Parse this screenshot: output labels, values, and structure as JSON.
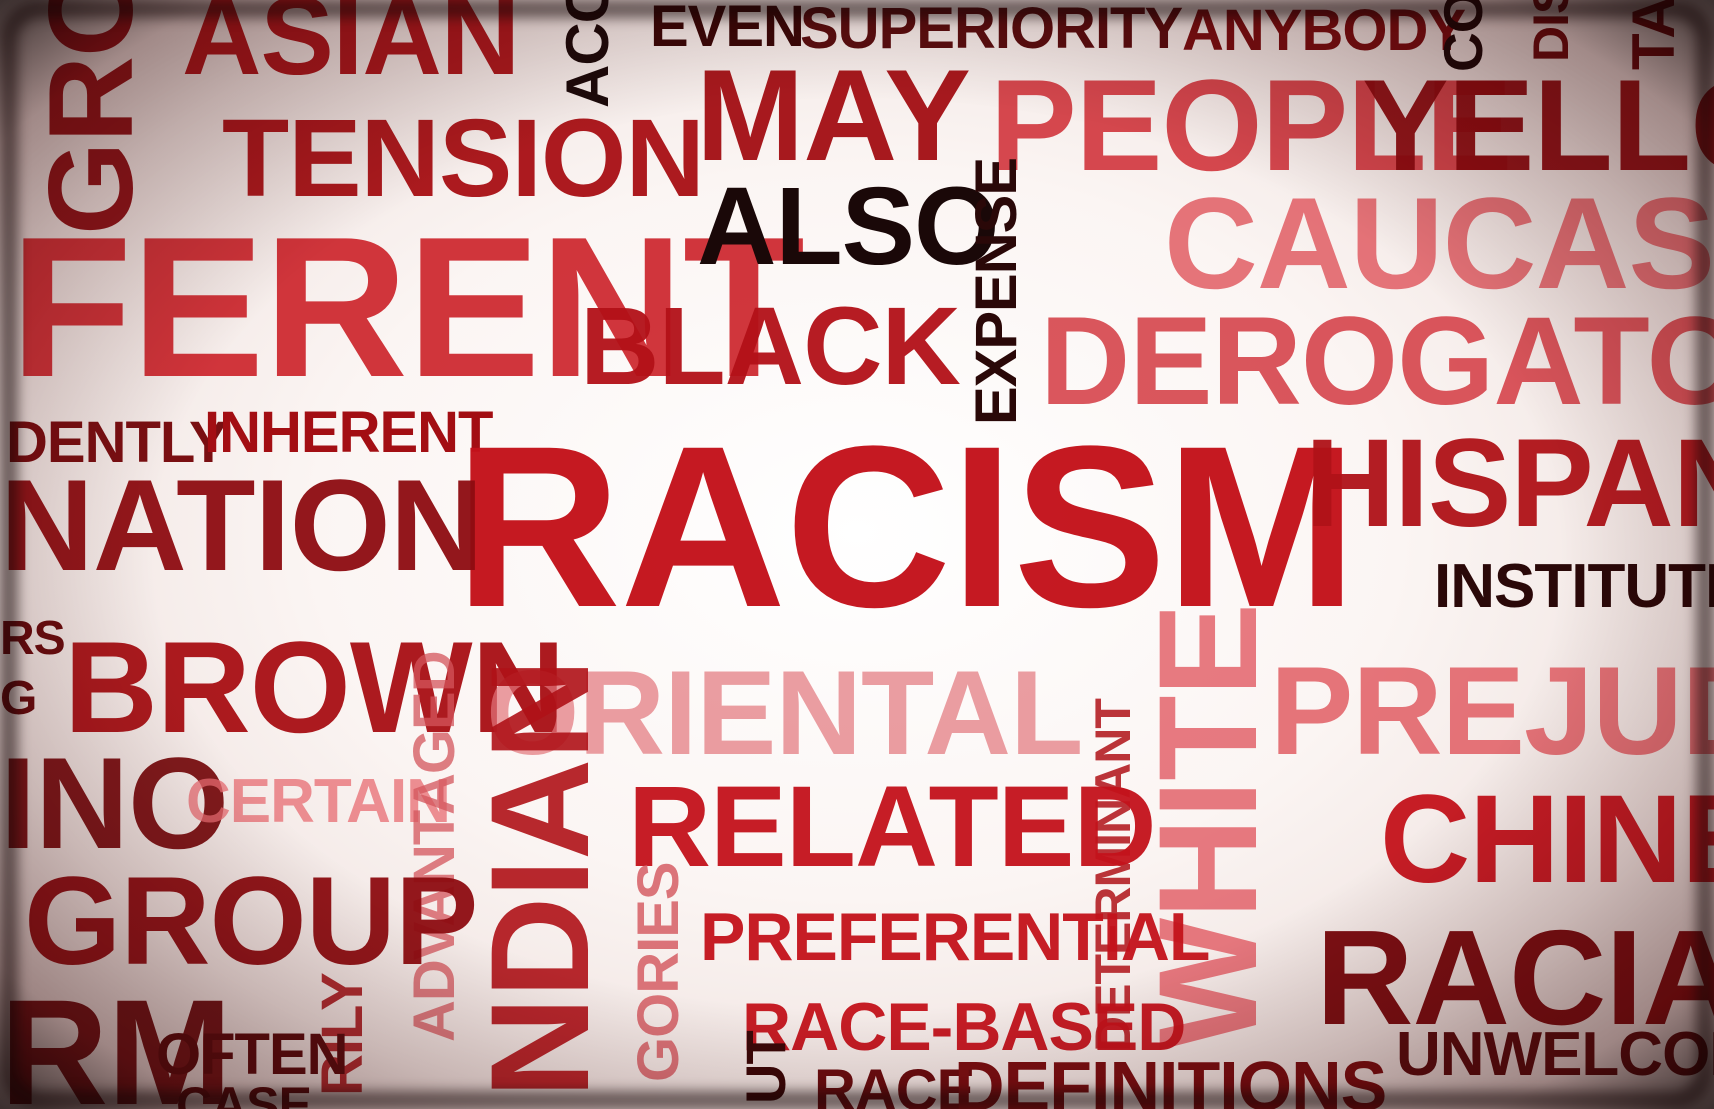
{
  "words": [
    {
      "id": "w-gro",
      "text": "GRO",
      "size": 120,
      "color": "#8c0d12",
      "opacity": 0.95,
      "vertical": true
    },
    {
      "id": "w-asian",
      "text": "ASIAN",
      "size": 110,
      "color": "#a80f14",
      "opacity": 0.95
    },
    {
      "id": "w-acc",
      "text": "ACC",
      "size": 60,
      "color": "#1c0a0a",
      "opacity": 1,
      "vertical": true
    },
    {
      "id": "w-even",
      "text": "EVEN",
      "size": 58,
      "color": "#3a0808",
      "opacity": 1
    },
    {
      "id": "w-superiority",
      "text": "SUPERIORITY",
      "size": 58,
      "color": "#5a0e10",
      "opacity": 1
    },
    {
      "id": "w-anybody",
      "text": "ANYBODY",
      "size": 58,
      "color": "#7a0f12",
      "opacity": 1
    },
    {
      "id": "w-co",
      "text": "CO",
      "size": 55,
      "color": "#1c0a0a",
      "opacity": 1,
      "vertical": true
    },
    {
      "id": "w-dis",
      "text": "DIS",
      "size": 50,
      "color": "#6a0d10",
      "opacity": 1,
      "vertical": true
    },
    {
      "id": "w-ta",
      "text": "TA",
      "size": 60,
      "color": "#6a0d10",
      "opacity": 1,
      "vertical": true
    },
    {
      "id": "w-tension",
      "text": "TENSION",
      "size": 110,
      "color": "#a80f14",
      "opacity": 0.95
    },
    {
      "id": "w-may",
      "text": "MAY",
      "size": 130,
      "color": "#a30e13",
      "opacity": 0.95
    },
    {
      "id": "w-people",
      "text": "PEOPLE",
      "size": 130,
      "color": "#cf2a32",
      "opacity": 0.85
    },
    {
      "id": "w-yellow",
      "text": "YELLO",
      "size": 130,
      "color": "#8e0c11",
      "opacity": 0.95
    },
    {
      "id": "w-ferent",
      "text": "FERENT",
      "size": 200,
      "color": "#cc2128",
      "opacity": 0.9
    },
    {
      "id": "w-also",
      "text": "ALSO",
      "size": 110,
      "color": "#1a0808",
      "opacity": 1
    },
    {
      "id": "w-expense",
      "text": "EXPENSE",
      "size": 58,
      "color": "#2a0808",
      "opacity": 1,
      "vertical": true
    },
    {
      "id": "w-caucasia",
      "text": "CAUCASIA",
      "size": 130,
      "color": "#e0545b",
      "opacity": 0.8
    },
    {
      "id": "w-black",
      "text": "BLACK",
      "size": 110,
      "color": "#b31118",
      "opacity": 0.95
    },
    {
      "id": "w-derogatory",
      "text": "DEROGATORY",
      "size": 125,
      "color": "#d43a42",
      "opacity": 0.85
    },
    {
      "id": "w-dently",
      "text": "DENTLY",
      "size": 58,
      "color": "#7a0f12",
      "opacity": 1
    },
    {
      "id": "w-inherent",
      "text": "INHERENT",
      "size": 58,
      "color": "#a30e13",
      "opacity": 1
    },
    {
      "id": "w-racism",
      "text": "RACISM",
      "size": 230,
      "color": "#c4121b",
      "opacity": 0.97
    },
    {
      "id": "w-hispan",
      "text": "HISPAN",
      "size": 125,
      "color": "#b01218",
      "opacity": 0.95
    },
    {
      "id": "w-nation",
      "text": "NATION",
      "size": 130,
      "color": "#8e0c11",
      "opacity": 0.95
    },
    {
      "id": "w-institutio",
      "text": "INSTITUTIO",
      "size": 62,
      "color": "#2a0808",
      "opacity": 1
    },
    {
      "id": "w-rs",
      "text": "RS",
      "size": 48,
      "color": "#6a0d10",
      "opacity": 1
    },
    {
      "id": "w-g",
      "text": "G",
      "size": 48,
      "color": "#6a0d10",
      "opacity": 1
    },
    {
      "id": "w-brown",
      "text": "BROWN",
      "size": 130,
      "color": "#a80f14",
      "opacity": 0.95
    },
    {
      "id": "w-oriental",
      "text": "ORIENTAL",
      "size": 120,
      "color": "#e3767c",
      "opacity": 0.7
    },
    {
      "id": "w-determinant",
      "text": "DETERMINANT",
      "size": 50,
      "color": "#b01218",
      "opacity": 0.85,
      "vertical": true
    },
    {
      "id": "w-white",
      "text": "WHITE",
      "size": 140,
      "color": "#e05059",
      "opacity": 0.75,
      "vertical": true
    },
    {
      "id": "w-prejudi",
      "text": "PREJUDI",
      "size": 125,
      "color": "#e0545b",
      "opacity": 0.8
    },
    {
      "id": "w-ino",
      "text": "INO",
      "size": 130,
      "color": "#7a0f12",
      "opacity": 0.95
    },
    {
      "id": "w-certain",
      "text": "CERTAIN",
      "size": 62,
      "color": "#e86c72",
      "opacity": 0.75
    },
    {
      "id": "w-advantaged",
      "text": "ADVANTAGED",
      "size": 58,
      "color": "#d4555c",
      "opacity": 0.75,
      "vertical": true
    },
    {
      "id": "w-ndian",
      "text": "NDIAN",
      "size": 140,
      "color": "#b01218",
      "opacity": 0.9,
      "vertical": true
    },
    {
      "id": "w-related",
      "text": "RELATED",
      "size": 115,
      "color": "#c4121b",
      "opacity": 0.95
    },
    {
      "id": "w-chines",
      "text": "CHINES",
      "size": 125,
      "color": "#c4121b",
      "opacity": 0.95
    },
    {
      "id": "w-group",
      "text": "GROUP",
      "size": 125,
      "color": "#8e0c11",
      "opacity": 0.95
    },
    {
      "id": "w-gories",
      "text": "GORIES",
      "size": 58,
      "color": "#d4555c",
      "opacity": 0.8,
      "vertical": true
    },
    {
      "id": "w-preferential",
      "text": "PREFERENTIAL",
      "size": 68,
      "color": "#c4121b",
      "opacity": 0.95
    },
    {
      "id": "w-racial",
      "text": "RACIAL",
      "size": 135,
      "color": "#7a0a0e",
      "opacity": 0.97
    },
    {
      "id": "w-rm",
      "text": "RM",
      "size": 150,
      "color": "#6a0d10",
      "opacity": 0.95
    },
    {
      "id": "w-rily",
      "text": "RILY",
      "size": 58,
      "color": "#a30e13",
      "opacity": 0.85,
      "vertical": true
    },
    {
      "id": "w-often",
      "text": "OFTEN",
      "size": 58,
      "color": "#5a0e10",
      "opacity": 1
    },
    {
      "id": "w-race-based",
      "text": "RACE-BASED",
      "size": 68,
      "color": "#c4121b",
      "opacity": 0.95
    },
    {
      "id": "w-unwelcom",
      "text": "UNWELCOM",
      "size": 62,
      "color": "#5a0e10",
      "opacity": 1
    },
    {
      "id": "w-case",
      "text": "CASE",
      "size": 50,
      "color": "#5a0e10",
      "opacity": 1
    },
    {
      "id": "w-ut",
      "text": "UT",
      "size": 56,
      "color": "#3a0808",
      "opacity": 1,
      "vertical": true
    },
    {
      "id": "w-race",
      "text": "RACE",
      "size": 58,
      "color": "#6a0d10",
      "opacity": 1
    },
    {
      "id": "w-definitions",
      "text": "DEFINITIONS",
      "size": 70,
      "color": "#7a0f12",
      "opacity": 1
    }
  ]
}
